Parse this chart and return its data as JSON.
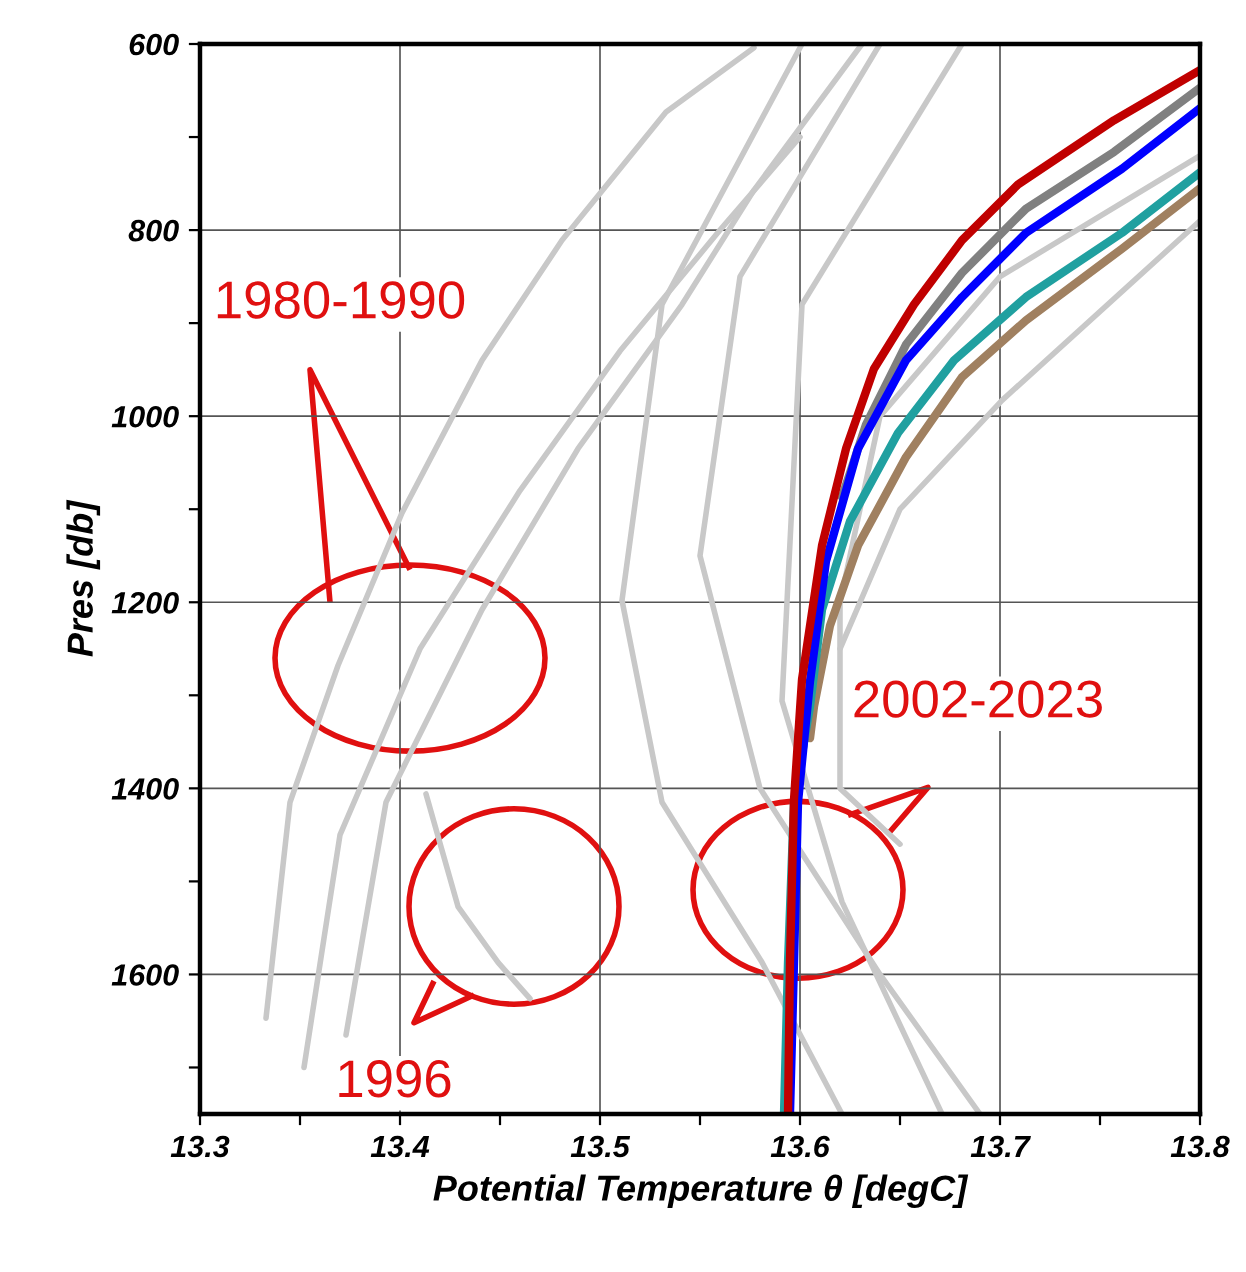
{
  "chart_data": {
    "type": "line",
    "xlabel": "Potential Temperature θ [degC]",
    "ylabel": "Pres [db]",
    "xlim": [
      13.3,
      13.8
    ],
    "ylim": [
      1750,
      600
    ],
    "xticks": [
      13.3,
      {
        "value": 13.35,
        "label": null
      },
      13.4,
      {
        "value": 13.45,
        "label": null
      },
      13.5,
      {
        "value": 13.55,
        "label": null
      },
      13.6,
      {
        "value": 13.65,
        "label": null
      },
      13.7,
      {
        "value": 13.75,
        "label": null
      },
      13.8
    ],
    "yticks": [
      600,
      {
        "value": 700,
        "label": null
      },
      800,
      {
        "value": 900,
        "label": null
      },
      1000,
      {
        "value": 1100,
        "label": null
      },
      1200,
      {
        "value": 1300,
        "label": null
      },
      1400,
      {
        "value": 1500,
        "label": null
      },
      1600,
      {
        "value": 1700,
        "label": null
      }
    ],
    "grid": true,
    "legend": false,
    "series": [
      {
        "color": "#c8c8c8",
        "x": [
          13.333,
          13.345,
          13.369,
          13.401,
          13.441,
          13.481,
          13.533,
          13.577
        ],
        "values": [
          1647,
          1415,
          1268,
          1104,
          940,
          811,
          673,
          604
        ]
      },
      {
        "color": "#c8c8c8",
        "x": [
          13.373,
          13.393,
          13.441,
          13.489,
          13.541,
          13.577,
          13.631
        ],
        "values": [
          1665,
          1415,
          1208,
          1035,
          880,
          757,
          600
        ]
      },
      {
        "color": "#c8c8c8",
        "x": [
          13.352,
          13.37,
          13.41,
          13.46,
          13.51,
          13.56,
          13.6
        ],
        "values": [
          1700,
          1450,
          1250,
          1080,
          930,
          800,
          700
        ]
      },
      {
        "color": "#c8c8c8",
        "x": [
          13.601,
          13.531,
          13.511,
          13.531,
          13.581,
          13.621
        ],
        "values": [
          600,
          880,
          1198,
          1415,
          1587,
          1750
        ]
      },
      {
        "color": "#c8c8c8",
        "x": [
          13.681,
          13.601,
          13.591,
          13.621,
          13.671
        ],
        "values": [
          600,
          880,
          1306,
          1522,
          1750
        ]
      },
      {
        "color": "#c8c8c8",
        "x": [
          13.64,
          13.57,
          13.55,
          13.58,
          13.64,
          13.69
        ],
        "values": [
          600,
          850,
          1150,
          1400,
          1600,
          1750
        ]
      },
      {
        "color": "#c8c8c8",
        "x": [
          13.8,
          13.7,
          13.64,
          13.62,
          13.62,
          13.65
        ],
        "values": [
          720,
          850,
          1000,
          1200,
          1400,
          1460
        ]
      },
      {
        "color": "#c8c8c8",
        "x": [
          13.8,
          13.701,
          13.65,
          13.62
        ],
        "values": [
          790,
          983,
          1100,
          1250
        ]
      },
      {
        "color": "#c8c8c8",
        "x": [
          13.413,
          13.429,
          13.449,
          13.465
        ],
        "values": [
          1406,
          1527,
          1587,
          1626
        ]
      },
      {
        "color": "#a08060",
        "x": [
          13.8,
          13.761,
          13.713,
          13.681,
          13.653,
          13.629,
          13.615,
          13.607,
          13.605
        ],
        "values": [
          755,
          820,
          897,
          958,
          1044,
          1139,
          1225,
          1312,
          1346
        ]
      },
      {
        "color": "#20a0a0",
        "x": [
          13.8,
          13.761,
          13.713,
          13.677,
          13.649,
          13.625,
          13.611,
          13.605,
          13.601,
          13.597,
          13.594,
          13.592
        ],
        "values": [
          738,
          803,
          872,
          940,
          1018,
          1113,
          1208,
          1312,
          1363,
          1415,
          1587,
          1750
        ]
      },
      {
        "color": "#808080",
        "x": [
          13.8,
          13.757,
          13.713,
          13.681,
          13.653,
          13.633,
          13.621
        ],
        "values": [
          647,
          716,
          777,
          846,
          923,
          1009,
          1087
        ]
      },
      {
        "color": "#0000ff",
        "x": [
          13.8,
          13.761,
          13.713,
          13.681,
          13.653,
          13.629,
          13.613,
          13.605,
          13.599,
          13.597,
          13.595
        ],
        "values": [
          669,
          734,
          803,
          872,
          940,
          1035,
          1156,
          1285,
          1415,
          1587,
          1750
        ]
      },
      {
        "color": "#c00000",
        "x": [
          13.8,
          13.757,
          13.709,
          13.681,
          13.657,
          13.637,
          13.623,
          13.611,
          13.601,
          13.597,
          13.595,
          13.594
        ],
        "values": [
          628,
          682,
          751,
          811,
          880,
          949,
          1035,
          1139,
          1283,
          1412,
          1584,
          1750
        ]
      }
    ],
    "annotations": [
      "1980-1990",
      "1996",
      "2002-2023"
    ]
  }
}
